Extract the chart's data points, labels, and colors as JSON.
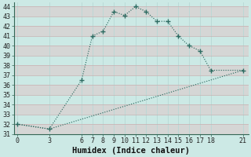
{
  "xlabel": "Humidex (Indice chaleur)",
  "bg_color": "#cce9e5",
  "plot_bg": "#cce9e5",
  "line_color": "#2d6b61",
  "grid_color_h": "#e8c8c8",
  "grid_color_v": "#b8d8d5",
  "curve_x": [
    0,
    3,
    6,
    7,
    8,
    9,
    10,
    11,
    12,
    13,
    14,
    15,
    16,
    17,
    18,
    21
  ],
  "curve_y": [
    32.0,
    31.5,
    36.5,
    41.0,
    41.5,
    43.5,
    43.1,
    44.0,
    43.5,
    42.5,
    42.5,
    41.0,
    40.0,
    39.5,
    37.5,
    37.5
  ],
  "line_x": [
    0,
    3,
    21
  ],
  "line_y": [
    32.0,
    31.5,
    37.5
  ],
  "xlim": [
    -0.3,
    21.5
  ],
  "ylim": [
    31,
    44.4
  ],
  "xticks": [
    0,
    3,
    6,
    7,
    8,
    9,
    10,
    11,
    12,
    13,
    14,
    15,
    16,
    17,
    18,
    21
  ],
  "yticks": [
    31,
    32,
    33,
    34,
    35,
    36,
    37,
    38,
    39,
    40,
    41,
    42,
    43,
    44
  ],
  "tick_fontsize": 6,
  "xlabel_fontsize": 7.5
}
